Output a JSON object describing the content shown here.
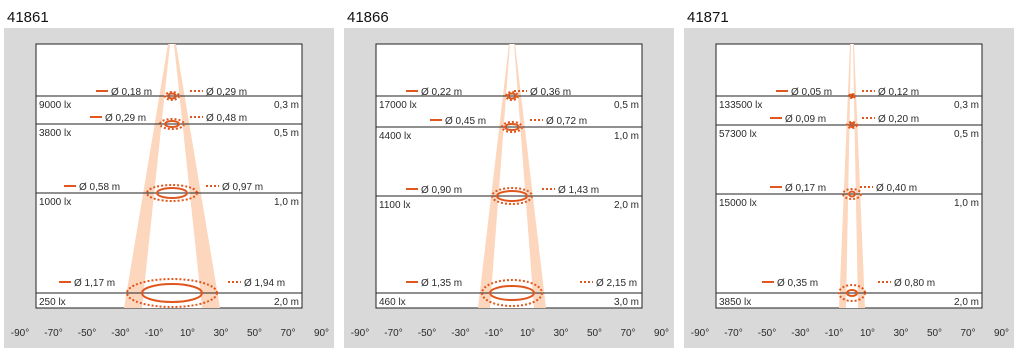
{
  "colors": {
    "background": "#d9d9d9",
    "inner": "#ffffff",
    "beam_outer": "#fcd6bd",
    "beam_inner": "#ffffff",
    "accent": "#e0571e",
    "line": "#222222"
  },
  "x_ticks": [
    "-90°",
    "-70°",
    "-50°",
    "-30°",
    "-10°",
    "10°",
    "30°",
    "50°",
    "70°",
    "90°"
  ],
  "panels": [
    {
      "title": "41861",
      "rows": [
        {
          "lux": "9000 lx",
          "dist": "0,3 m",
          "d_inner": "Ø 0,18 m",
          "d_outer": "Ø 0,29 m"
        },
        {
          "lux": "3800 lx",
          "dist": "0,5 m",
          "d_inner": "Ø 0,29 m",
          "d_outer": "Ø 0,48 m"
        },
        {
          "lux": "1000 lx",
          "dist": "1,0 m",
          "d_inner": "Ø 0,58 m",
          "d_outer": "Ø 0,97 m"
        },
        {
          "lux": "250 lx",
          "dist": "2,0 m",
          "d_inner": "Ø 1,17 m",
          "d_outer": "Ø 1,94 m"
        }
      ]
    },
    {
      "title": "41866",
      "rows": [
        {
          "lux": "17000 lx",
          "dist": "0,5 m",
          "d_inner": "Ø 0,22 m",
          "d_outer": "Ø 0,36 m"
        },
        {
          "lux": "4400 lx",
          "dist": "1,0 m",
          "d_inner": "Ø 0,45 m",
          "d_outer": "Ø 0,72 m"
        },
        {
          "lux": "1100 lx",
          "dist": "2,0 m",
          "d_inner": "Ø 0,90 m",
          "d_outer": "Ø 1,43 m"
        },
        {
          "lux": "460 lx",
          "dist": "3,0 m",
          "d_inner": "Ø 1,35 m",
          "d_outer": "Ø 2,15 m"
        }
      ]
    },
    {
      "title": "41871",
      "rows": [
        {
          "lux": "133500 lx",
          "dist": "0,3 m",
          "d_inner": "Ø 0,05 m",
          "d_outer": "Ø 0,12 m"
        },
        {
          "lux": "57300 lx",
          "dist": "0,5 m",
          "d_inner": "Ø 0,09 m",
          "d_outer": "Ø 0,20 m"
        },
        {
          "lux": "15000 lx",
          "dist": "1,0 m",
          "d_inner": "Ø 0,17 m",
          "d_outer": "Ø 0,40 m"
        },
        {
          "lux": "3850 lx",
          "dist": "2,0 m",
          "d_inner": "Ø 0,35 m",
          "d_outer": "Ø 0,80 m"
        }
      ]
    }
  ]
}
